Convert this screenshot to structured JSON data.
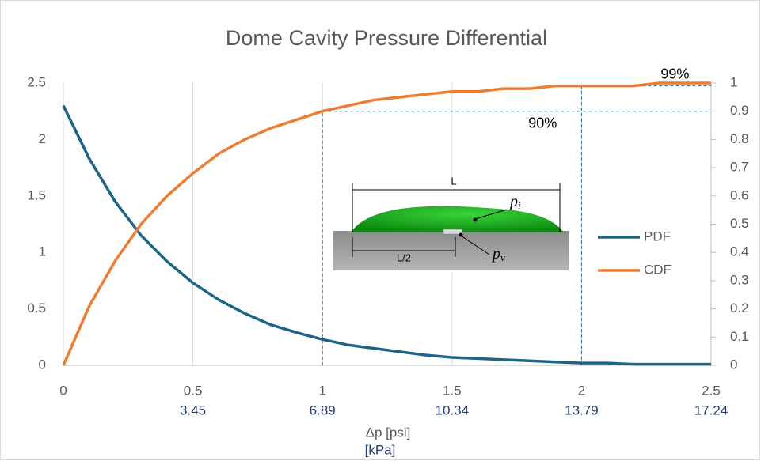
{
  "chart_data": {
    "type": "line",
    "title": "Dome Cavity Pressure Differential",
    "xlabel": "Δp [psi]",
    "x2label": "[kPa]",
    "x": [
      0,
      0.1,
      0.2,
      0.3,
      0.4,
      0.5,
      0.6,
      0.7,
      0.8,
      0.9,
      1.0,
      1.1,
      1.2,
      1.3,
      1.4,
      1.5,
      1.6,
      1.7,
      1.8,
      1.9,
      2.0,
      2.1,
      2.2,
      2.3,
      2.4,
      2.5
    ],
    "series": [
      {
        "name": "PDF",
        "color": "#1c6587",
        "axis": "y",
        "values": [
          2.3,
          1.83,
          1.45,
          1.15,
          0.92,
          0.73,
          0.58,
          0.46,
          0.36,
          0.29,
          0.23,
          0.18,
          0.15,
          0.12,
          0.09,
          0.07,
          0.06,
          0.05,
          0.04,
          0.03,
          0.02,
          0.02,
          0.01,
          0.01,
          0.01,
          0.01
        ]
      },
      {
        "name": "CDF",
        "color": "#ee7d31",
        "axis": "y2",
        "values": [
          0,
          0.21,
          0.37,
          0.5,
          0.6,
          0.68,
          0.75,
          0.8,
          0.84,
          0.87,
          0.9,
          0.92,
          0.94,
          0.95,
          0.96,
          0.97,
          0.97,
          0.98,
          0.98,
          0.99,
          0.99,
          0.99,
          0.99,
          1.0,
          1.0,
          1.0
        ]
      }
    ],
    "xlim": [
      0,
      2.5
    ],
    "xticks": [
      0,
      0.5,
      1,
      1.5,
      2,
      2.5
    ],
    "x2ticks": [
      null,
      3.45,
      6.89,
      10.34,
      13.79,
      17.24
    ],
    "ylim": [
      0,
      2.5
    ],
    "yticks": [
      0,
      0.5,
      1,
      1.5,
      2,
      2.5
    ],
    "y2lim": [
      0,
      1
    ],
    "y2ticks": [
      0,
      0.1,
      0.2,
      0.3,
      0.4,
      0.5,
      0.6,
      0.7,
      0.8,
      0.9,
      1
    ],
    "grid": "x",
    "legend": "right",
    "annotations": [
      {
        "text": "90%",
        "x": 1,
        "y": 0.9
      },
      {
        "text": "99%",
        "x": 2,
        "y": 0.99
      }
    ],
    "inset_labels": {
      "length": "L",
      "half_length": "L/2",
      "inner": {
        "base": "p",
        "sub": "i"
      },
      "void": {
        "base": "p",
        "sub": "v"
      }
    }
  }
}
